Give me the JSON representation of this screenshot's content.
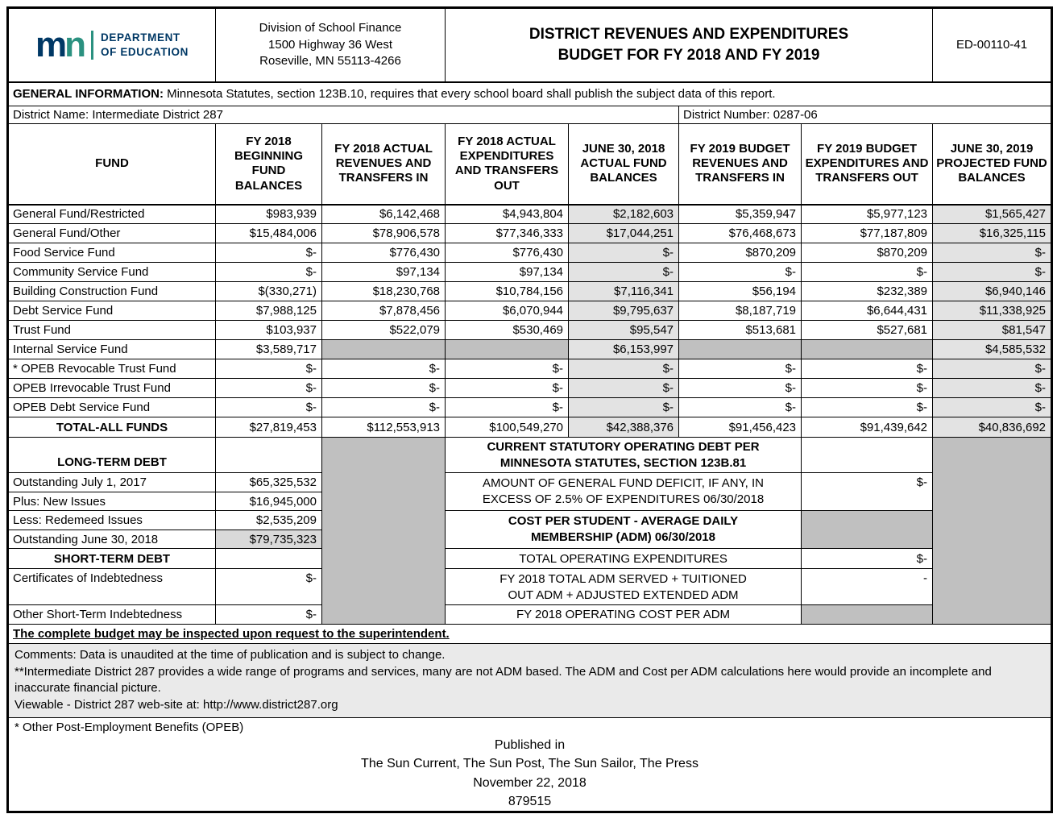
{
  "header": {
    "logo_m": "m",
    "logo_n": "n",
    "dept_lines": [
      "DEPARTMENT",
      "OF EDUCATION"
    ],
    "address_lines": [
      "Division of School Finance",
      "1500 Highway 36 West",
      "Roseville, MN 55113-4266"
    ],
    "title_lines": [
      "DISTRICT REVENUES AND EXPENDITURES",
      "BUDGET FOR FY 2018 AND FY 2019"
    ],
    "form_number": "ED-00110-41"
  },
  "general_info": {
    "label": "GENERAL INFORMATION:",
    "text": "Minnesota Statutes, section 123B.10, requires that every school board shall publish the subject data of this report."
  },
  "district": {
    "name": "District Name: Intermediate District 287",
    "number": "District Number: 0287-06"
  },
  "fund_table": {
    "headers": [
      "FUND",
      "FY 2018 BEGINNING FUND BALANCES",
      "FY 2018 ACTUAL REVENUES AND TRANSFERS IN",
      "FY 2018 ACTUAL EXPENDITURES AND TRANSFERS OUT",
      "JUNE 30, 2018 ACTUAL FUND BALANCES",
      "FY 2019 BUDGET REVENUES AND TRANSFERS IN",
      "FY 2019 BUDGET EXPENDITURES AND TRANSFERS OUT",
      "JUNE 30, 2019 PROJECTED FUND BALANCES"
    ],
    "rows": [
      {
        "fund": "General Fund/Restricted",
        "values": [
          "$983,939",
          "$6,142,468",
          "$4,943,804",
          "$2,182,603",
          "$5,359,947",
          "$5,977,123",
          "$1,565,427"
        ]
      },
      {
        "fund": "General Fund/Other",
        "values": [
          "$15,484,006",
          "$78,906,578",
          "$77,346,333",
          "$17,044,251",
          "$76,468,673",
          "$77,187,809",
          "$16,325,115"
        ]
      },
      {
        "fund": "Food Service Fund",
        "values": [
          "$-",
          "$776,430",
          "$776,430",
          "$-",
          "$870,209",
          "$870,209",
          "$-"
        ]
      },
      {
        "fund": "Community Service Fund",
        "values": [
          "$-",
          "$97,134",
          "$97,134",
          "$-",
          "$-",
          "$-",
          "$-"
        ]
      },
      {
        "fund": "Building Construction Fund",
        "values": [
          "$(330,271)",
          "$18,230,768",
          "$10,784,156",
          "$7,116,341",
          "$56,194",
          "$232,389",
          "$6,940,146"
        ]
      },
      {
        "fund": "Debt Service Fund",
        "values": [
          "$7,988,125",
          "$7,878,456",
          "$6,070,944",
          "$9,795,637",
          "$8,187,719",
          "$6,644,431",
          "$11,338,925"
        ]
      },
      {
        "fund": "Trust Fund",
        "values": [
          "$103,937",
          "$522,079",
          "$530,469",
          "$95,547",
          "$513,681",
          "$527,681",
          "$81,547"
        ]
      },
      {
        "fund": "Internal Service Fund",
        "values": [
          "$3,589,717",
          null,
          null,
          "$6,153,997",
          null,
          null,
          "$4,585,532"
        ]
      },
      {
        "fund": "* OPEB Revocable Trust Fund",
        "values": [
          "$-",
          "$-",
          "$-",
          "$-",
          "$-",
          "$-",
          "$-"
        ]
      },
      {
        "fund": "OPEB Irrevocable Trust Fund",
        "values": [
          "$-",
          "$-",
          "$-",
          "$-",
          "$-",
          "$-",
          "$-"
        ]
      },
      {
        "fund": "OPEB Debt Service Fund",
        "values": [
          "$-",
          "$-",
          "$-",
          "$-",
          "$-",
          "$-",
          "$-"
        ]
      }
    ],
    "total": {
      "fund": "TOTAL-ALL FUNDS",
      "values": [
        "$27,819,453",
        "$112,553,913",
        "$100,549,270",
        "$42,388,376",
        "$91,456,423",
        "$91,439,642",
        "$40,836,692"
      ]
    }
  },
  "debt_section": {
    "long_term_title": "LONG-TERM DEBT",
    "long_term_rows": [
      {
        "label": "Outstanding July 1, 2017",
        "value": "$65,325,532"
      },
      {
        "label": "Plus: New Issues",
        "value": "$16,945,000"
      },
      {
        "label": "Less: Redemeed Issues",
        "value": "$2,535,209"
      },
      {
        "label": "Outstanding June 30, 2018",
        "value": "$79,735,323"
      }
    ],
    "short_term_title": "SHORT-TERM DEBT",
    "short_term_rows": [
      {
        "label": "Certificates of Indebtedness",
        "value": "$-"
      },
      {
        "label": "Other Short-Term Indebtedness",
        "value": "$-"
      }
    ]
  },
  "statutory_section": {
    "header_lines": [
      "CURRENT STATUTORY OPERATING DEBT PER",
      "MINNESOTA STATUTES, SECTION 123B.81"
    ],
    "deficit_label_lines": [
      "AMOUNT OF GENERAL FUND DEFICIT, IF ANY, IN",
      "EXCESS OF 2.5% OF EXPENDITURES 06/30/2018"
    ],
    "deficit_value": "$-",
    "cost_header_lines": [
      "COST PER STUDENT - AVERAGE DAILY",
      "MEMBERSHIP (ADM) 06/30/2018"
    ],
    "total_operating_label": "TOTAL OPERATING EXPENDITURES",
    "total_operating_value": "$-",
    "adm_label_lines": [
      "FY 2018 TOTAL ADM SERVED + TUITIONED",
      "OUT ADM + ADJUSTED EXTENDED ADM"
    ],
    "adm_value": "-",
    "cost_per_adm_label": "FY 2018 OPERATING COST PER ADM"
  },
  "footer": {
    "inspect_note": "The complete budget may be inspected upon request to the superintendent.",
    "comments_lines": [
      "Comments: Data is unaudited at the time of publication and is subject to change.",
      "**Intermediate District 287 provides a wide range of programs and services, many are not ADM based.  The ADM and Cost per ADM calculations here would provide an incomplete and inaccurate financial picture.",
      "Viewable - District 287 web-site at:  http://www.district287.org"
    ],
    "opeb_note": "* Other Post-Employment Benefits (OPEB)",
    "publication_lines": [
      "Published in",
      "The Sun Current, The Sun Post, The Sun Sailor, The Press",
      "November 22, 2018",
      "879515"
    ]
  },
  "colors": {
    "brand_blue": "#003865",
    "brand_teal": "#2b9180",
    "shade_light": "#e3e3e3",
    "shade_mid": "#d9d9d9",
    "shade_dark": "#c0c0c0",
    "comments_bg": "#eaeaea"
  }
}
